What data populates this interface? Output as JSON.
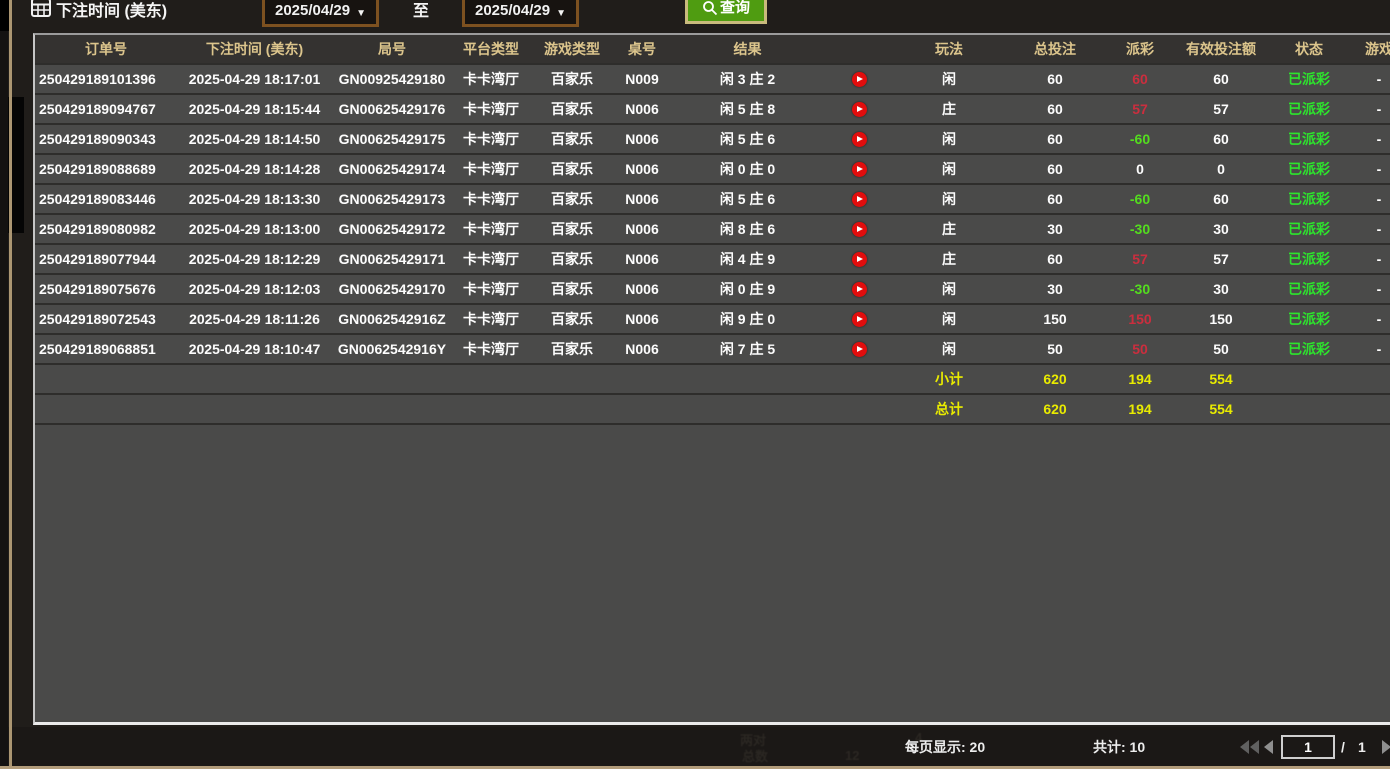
{
  "toolbar": {
    "field_label": "下注时间 (美东)",
    "date_from": "2025/04/29",
    "to_label": "至",
    "date_to": "2025/04/29",
    "query_label": "查询",
    "dropdown_caret": "▼"
  },
  "table": {
    "columns": [
      "订单号",
      "下注时间 (美东)",
      "局号",
      "平台类型",
      "游戏类型",
      "桌号",
      "结果",
      "",
      "玩法",
      "总投注",
      "派彩",
      "有效投注额",
      "状态",
      "游戏"
    ],
    "rows": [
      {
        "order": "250429189101396",
        "bet_time": "2025-04-29 18:17:01",
        "round_id": "GN00925429180",
        "platform": "卡卡湾厅",
        "game_type": "百家乐",
        "table_no": "N009",
        "result": "闲 3 庄 2",
        "play": "闲",
        "total_bet": "60",
        "payout": "60",
        "payout_class": "win",
        "valid_bet": "60",
        "status": "已派彩",
        "extra": "-"
      },
      {
        "order": "250429189094767",
        "bet_time": "2025-04-29 18:15:44",
        "round_id": "GN00625429176",
        "platform": "卡卡湾厅",
        "game_type": "百家乐",
        "table_no": "N006",
        "result": "闲 5 庄 8",
        "play": "庄",
        "total_bet": "60",
        "payout": "57",
        "payout_class": "win",
        "valid_bet": "57",
        "status": "已派彩",
        "extra": "-"
      },
      {
        "order": "250429189090343",
        "bet_time": "2025-04-29 18:14:50",
        "round_id": "GN00625429175",
        "platform": "卡卡湾厅",
        "game_type": "百家乐",
        "table_no": "N006",
        "result": "闲 5 庄 6",
        "play": "闲",
        "total_bet": "60",
        "payout": "-60",
        "payout_class": "loss",
        "valid_bet": "60",
        "status": "已派彩",
        "extra": "-"
      },
      {
        "order": "250429189088689",
        "bet_time": "2025-04-29 18:14:28",
        "round_id": "GN00625429174",
        "platform": "卡卡湾厅",
        "game_type": "百家乐",
        "table_no": "N006",
        "result": "闲 0 庄 0",
        "play": "闲",
        "total_bet": "60",
        "payout": "0",
        "payout_class": "zero",
        "valid_bet": "0",
        "status": "已派彩",
        "extra": "-"
      },
      {
        "order": "250429189083446",
        "bet_time": "2025-04-29 18:13:30",
        "round_id": "GN00625429173",
        "platform": "卡卡湾厅",
        "game_type": "百家乐",
        "table_no": "N006",
        "result": "闲 5 庄 6",
        "play": "闲",
        "total_bet": "60",
        "payout": "-60",
        "payout_class": "loss",
        "valid_bet": "60",
        "status": "已派彩",
        "extra": "-"
      },
      {
        "order": "250429189080982",
        "bet_time": "2025-04-29 18:13:00",
        "round_id": "GN00625429172",
        "platform": "卡卡湾厅",
        "game_type": "百家乐",
        "table_no": "N006",
        "result": "闲 8 庄 6",
        "play": "庄",
        "total_bet": "30",
        "payout": "-30",
        "payout_class": "loss",
        "valid_bet": "30",
        "status": "已派彩",
        "extra": "-"
      },
      {
        "order": "250429189077944",
        "bet_time": "2025-04-29 18:12:29",
        "round_id": "GN00625429171",
        "platform": "卡卡湾厅",
        "game_type": "百家乐",
        "table_no": "N006",
        "result": "闲 4 庄 9",
        "play": "庄",
        "total_bet": "60",
        "payout": "57",
        "payout_class": "win",
        "valid_bet": "57",
        "status": "已派彩",
        "extra": "-"
      },
      {
        "order": "250429189075676",
        "bet_time": "2025-04-29 18:12:03",
        "round_id": "GN00625429170",
        "platform": "卡卡湾厅",
        "game_type": "百家乐",
        "table_no": "N006",
        "result": "闲 0 庄 9",
        "play": "闲",
        "total_bet": "30",
        "payout": "-30",
        "payout_class": "loss",
        "valid_bet": "30",
        "status": "已派彩",
        "extra": "-"
      },
      {
        "order": "250429189072543",
        "bet_time": "2025-04-29 18:11:26",
        "round_id": "GN0062542916Z",
        "platform": "卡卡湾厅",
        "game_type": "百家乐",
        "table_no": "N006",
        "result": "闲 9 庄 0",
        "play": "闲",
        "total_bet": "150",
        "payout": "150",
        "payout_class": "win",
        "valid_bet": "150",
        "status": "已派彩",
        "extra": "-"
      },
      {
        "order": "250429189068851",
        "bet_time": "2025-04-29 18:10:47",
        "round_id": "GN0062542916Y",
        "platform": "卡卡湾厅",
        "game_type": "百家乐",
        "table_no": "N006",
        "result": "闲 7 庄 5",
        "play": "闲",
        "total_bet": "50",
        "payout": "50",
        "payout_class": "win",
        "valid_bet": "50",
        "status": "已派彩",
        "extra": "-"
      }
    ],
    "subtotal_row": {
      "label": "小计",
      "total_bet": "620",
      "payout": "194",
      "valid_bet": "554"
    },
    "total_row": {
      "label": "总计",
      "total_bet": "620",
      "payout": "194",
      "valid_bet": "554"
    }
  },
  "footer": {
    "page_size": "每页显示: 20",
    "total_count": "共计: 10",
    "page_current": "1",
    "page_separator": "/",
    "page_total": "1"
  },
  "background_ghost": {
    "l1": "两对",
    "v1": "4",
    "l2": "总数",
    "v2": "12"
  },
  "colors": {
    "win_red": "#cb2e3e",
    "loss_green": "#54dd1e",
    "status_green": "#2de32d",
    "summary_yellow": "#e9eb00",
    "header_gold": "#dcc58c",
    "query_green": "#4f9c11",
    "date_border_brown": "#7d5120",
    "row_gray": "#4a4a49",
    "page_bg": "#201d1a"
  }
}
